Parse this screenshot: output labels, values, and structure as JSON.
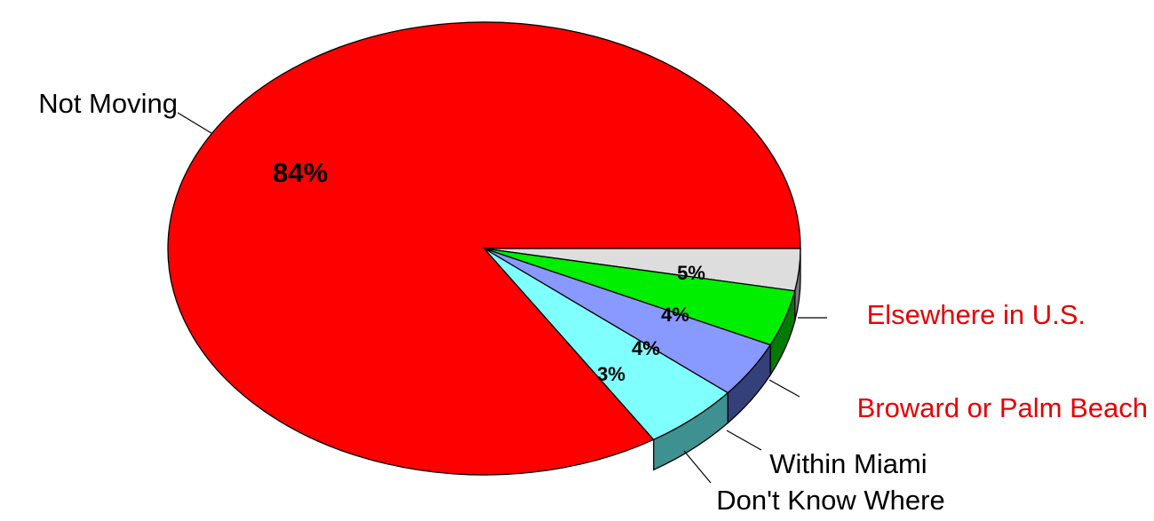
{
  "chart_data": {
    "type": "pie",
    "three_d": true,
    "categories": [
      "Not Moving",
      "Don't Know Where",
      "Within Miami",
      "Broward or Palm Beach",
      "Elsewhere in U.S."
    ],
    "values": [
      84,
      3,
      4,
      4,
      5
    ],
    "value_labels": [
      "84%",
      "3%",
      "4%",
      "4%",
      "5%"
    ],
    "colors": [
      "#FF0000",
      "#DDDDDD",
      "#00EE00",
      "#8899FF",
      "#80FFFF"
    ],
    "side_colors": [
      "#7A0000",
      "#777777",
      "#007A00",
      "#34407A",
      "#3F9090"
    ],
    "label_colors": [
      "#000000",
      "#000000",
      "#000000",
      "#E60000",
      "#E60000"
    ],
    "legend": "none"
  }
}
